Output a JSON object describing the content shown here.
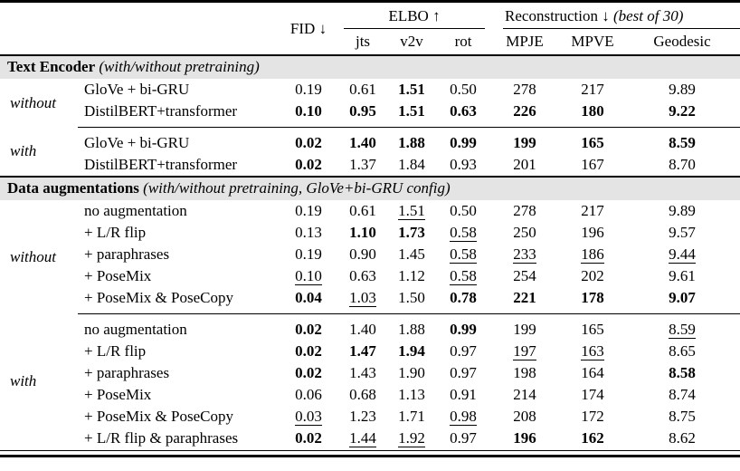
{
  "header": {
    "fid": "FID ↓",
    "elbo": "ELBO ↑",
    "recon": "Reconstruction ↓",
    "recon_note": "(best of 30)",
    "elbo_subcols": [
      "jts",
      "v2v",
      "rot"
    ],
    "recon_subcols": [
      "MPJE",
      "MPVE",
      "Geodesic"
    ]
  },
  "sections": [
    {
      "title": "Text Encoder",
      "note": "(with/without pretraining)",
      "groups": [
        {
          "label": "without",
          "rows": [
            {
              "name": "GloVe + bi-GRU",
              "cells": [
                {
                  "v": "0.19"
                },
                {
                  "v": "0.61"
                },
                {
                  "v": "1.51",
                  "style": "bold"
                },
                {
                  "v": "0.50"
                },
                {
                  "v": "278"
                },
                {
                  "v": "217"
                },
                {
                  "v": "9.89"
                }
              ]
            },
            {
              "name": "DistilBERT+transformer",
              "cells": [
                {
                  "v": "0.10",
                  "style": "bold"
                },
                {
                  "v": "0.95",
                  "style": "bold"
                },
                {
                  "v": "1.51",
                  "style": "bold"
                },
                {
                  "v": "0.63",
                  "style": "bold"
                },
                {
                  "v": "226",
                  "style": "bold"
                },
                {
                  "v": "180",
                  "style": "bold"
                },
                {
                  "v": "9.22",
                  "style": "bold"
                }
              ]
            }
          ]
        },
        {
          "label": "with",
          "rows": [
            {
              "name": "GloVe + bi-GRU",
              "cells": [
                {
                  "v": "0.02",
                  "style": "bold"
                },
                {
                  "v": "1.40",
                  "style": "bold"
                },
                {
                  "v": "1.88",
                  "style": "bold"
                },
                {
                  "v": "0.99",
                  "style": "bold"
                },
                {
                  "v": "199",
                  "style": "bold"
                },
                {
                  "v": "165",
                  "style": "bold"
                },
                {
                  "v": "8.59",
                  "style": "bold"
                }
              ]
            },
            {
              "name": "DistilBERT+transformer",
              "cells": [
                {
                  "v": "0.02",
                  "style": "bold"
                },
                {
                  "v": "1.37"
                },
                {
                  "v": "1.84"
                },
                {
                  "v": "0.93"
                },
                {
                  "v": "201"
                },
                {
                  "v": "167"
                },
                {
                  "v": "8.70"
                }
              ]
            }
          ]
        }
      ]
    },
    {
      "title": "Data augmentations",
      "note": "(with/without pretraining, GloVe+bi-GRU config)",
      "groups": [
        {
          "label": "without",
          "rows": [
            {
              "name": "no augmentation",
              "cells": [
                {
                  "v": "0.19"
                },
                {
                  "v": "0.61"
                },
                {
                  "v": "1.51",
                  "style": "underline"
                },
                {
                  "v": "0.50"
                },
                {
                  "v": "278"
                },
                {
                  "v": "217"
                },
                {
                  "v": "9.89"
                }
              ]
            },
            {
              "name": "+ L/R flip",
              "cells": [
                {
                  "v": "0.13"
                },
                {
                  "v": "1.10",
                  "style": "bold"
                },
                {
                  "v": "1.73",
                  "style": "bold"
                },
                {
                  "v": "0.58",
                  "style": "underline"
                },
                {
                  "v": "250"
                },
                {
                  "v": "196"
                },
                {
                  "v": "9.57"
                }
              ]
            },
            {
              "name": "+ paraphrases",
              "cells": [
                {
                  "v": "0.19"
                },
                {
                  "v": "0.90"
                },
                {
                  "v": "1.45"
                },
                {
                  "v": "0.58",
                  "style": "underline"
                },
                {
                  "v": "233",
                  "style": "underline"
                },
                {
                  "v": "186",
                  "style": "underline"
                },
                {
                  "v": "9.44",
                  "style": "underline"
                }
              ]
            },
            {
              "name": "+ PoseMix",
              "cells": [
                {
                  "v": "0.10",
                  "style": "underline"
                },
                {
                  "v": "0.63"
                },
                {
                  "v": "1.12"
                },
                {
                  "v": "0.58",
                  "style": "underline"
                },
                {
                  "v": "254"
                },
                {
                  "v": "202"
                },
                {
                  "v": "9.61"
                }
              ]
            },
            {
              "name": "+ PoseMix & PoseCopy",
              "cells": [
                {
                  "v": "0.04",
                  "style": "bold"
                },
                {
                  "v": "1.03",
                  "style": "underline"
                },
                {
                  "v": "1.50"
                },
                {
                  "v": "0.78",
                  "style": "bold"
                },
                {
                  "v": "221",
                  "style": "bold"
                },
                {
                  "v": "178",
                  "style": "bold"
                },
                {
                  "v": "9.07",
                  "style": "bold"
                }
              ]
            }
          ]
        },
        {
          "label": "with",
          "rows": [
            {
              "name": "no augmentation",
              "cells": [
                {
                  "v": "0.02",
                  "style": "bold"
                },
                {
                  "v": "1.40"
                },
                {
                  "v": "1.88"
                },
                {
                  "v": "0.99",
                  "style": "bold"
                },
                {
                  "v": "199"
                },
                {
                  "v": "165"
                },
                {
                  "v": "8.59",
                  "style": "underline"
                }
              ]
            },
            {
              "name": "+ L/R flip",
              "cells": [
                {
                  "v": "0.02",
                  "style": "bold"
                },
                {
                  "v": "1.47",
                  "style": "bold"
                },
                {
                  "v": "1.94",
                  "style": "bold"
                },
                {
                  "v": "0.97"
                },
                {
                  "v": "197",
                  "style": "underline"
                },
                {
                  "v": "163",
                  "style": "underline"
                },
                {
                  "v": "8.65"
                }
              ]
            },
            {
              "name": "+ paraphrases",
              "cells": [
                {
                  "v": "0.02",
                  "style": "bold"
                },
                {
                  "v": "1.43"
                },
                {
                  "v": "1.90"
                },
                {
                  "v": "0.97"
                },
                {
                  "v": "198"
                },
                {
                  "v": "164"
                },
                {
                  "v": "8.58",
                  "style": "bold"
                }
              ]
            },
            {
              "name": "+ PoseMix",
              "cells": [
                {
                  "v": "0.06"
                },
                {
                  "v": "0.68"
                },
                {
                  "v": "1.13"
                },
                {
                  "v": "0.91"
                },
                {
                  "v": "214"
                },
                {
                  "v": "174"
                },
                {
                  "v": "8.74"
                }
              ]
            },
            {
              "name": "+ PoseMix & PoseCopy",
              "cells": [
                {
                  "v": "0.03",
                  "style": "underline"
                },
                {
                  "v": "1.23"
                },
                {
                  "v": "1.71"
                },
                {
                  "v": "0.98",
                  "style": "underline"
                },
                {
                  "v": "208"
                },
                {
                  "v": "172"
                },
                {
                  "v": "8.75"
                }
              ]
            },
            {
              "name": "+ L/R flip & paraphrases",
              "cells": [
                {
                  "v": "0.02",
                  "style": "bold"
                },
                {
                  "v": "1.44",
                  "style": "underline"
                },
                {
                  "v": "1.92",
                  "style": "underline"
                },
                {
                  "v": "0.97"
                },
                {
                  "v": "196",
                  "style": "bold"
                },
                {
                  "v": "162",
                  "style": "bold"
                },
                {
                  "v": "8.62"
                }
              ]
            }
          ]
        }
      ]
    }
  ]
}
